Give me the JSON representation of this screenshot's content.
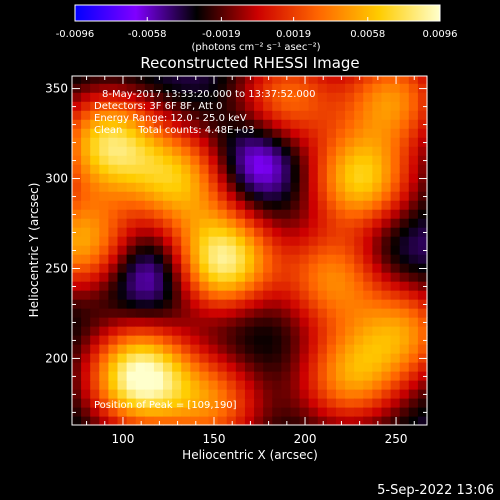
{
  "colorbar": {
    "tick_labels": [
      "-0.0096",
      "-0.0058",
      "-0.0019",
      "0.0019",
      "0.0058",
      "0.0096"
    ],
    "unit_label": "(photons cm⁻² s⁻¹ asec⁻²)",
    "range": [
      -0.0096,
      0.0096
    ],
    "stops": [
      "#0000ff",
      "#8000ff",
      "#000000",
      "#cc0000",
      "#ff6600",
      "#ffcc00",
      "#ffffcc"
    ]
  },
  "chart_data": {
    "type": "heatmap",
    "title": "Reconstructed RHESSI Image",
    "xlabel": "Heliocentric X (arcsec)",
    "ylabel": "Heliocentric Y (arcsec)",
    "xlim": [
      72,
      267
    ],
    "ylim": [
      163,
      357
    ],
    "x_ticks": [
      100,
      150,
      200,
      250
    ],
    "y_ticks": [
      200,
      250,
      300,
      350
    ],
    "grid": false,
    "annotations": [
      "8-May-2017 13:33:20.000 to 13:37:52.000",
      "Detectors: 3F 6F 8F, Att 0",
      "Energy Range: 12.0 - 25.0 keV",
      "Clean     Total counts: 4.48E+03"
    ],
    "peak_label": "Position of Peak = [109,190]",
    "peak": [
      109,
      190
    ],
    "sources": [
      {
        "x": 109,
        "y": 190,
        "value": 0.0096
      },
      {
        "x": 155,
        "y": 255,
        "value": 0.0085
      },
      {
        "x": 92,
        "y": 320,
        "value": 0.007
      },
      {
        "x": 130,
        "y": 300,
        "value": 0.005
      },
      {
        "x": 230,
        "y": 300,
        "value": 0.006
      },
      {
        "x": 215,
        "y": 245,
        "value": 0.0035
      },
      {
        "x": 225,
        "y": 190,
        "value": 0.004
      },
      {
        "x": 150,
        "y": 175,
        "value": 0.003
      },
      {
        "x": 248,
        "y": 345,
        "value": 0.004
      },
      {
        "x": 190,
        "y": 345,
        "value": 0.003
      },
      {
        "x": 77,
        "y": 265,
        "value": 0.005
      },
      {
        "x": 255,
        "y": 215,
        "value": 0.0035
      }
    ],
    "minima": [
      {
        "x": 115,
        "y": 248,
        "value": -0.0082
      },
      {
        "x": 175,
        "y": 310,
        "value": -0.0085
      },
      {
        "x": 170,
        "y": 220,
        "value": -0.005
      },
      {
        "x": 250,
        "y": 262,
        "value": -0.006
      },
      {
        "x": 200,
        "y": 175,
        "value": -0.004
      },
      {
        "x": 255,
        "y": 290,
        "value": -0.004
      }
    ]
  },
  "footer": {
    "timestamp": "5-Sep-2022 13:06"
  }
}
